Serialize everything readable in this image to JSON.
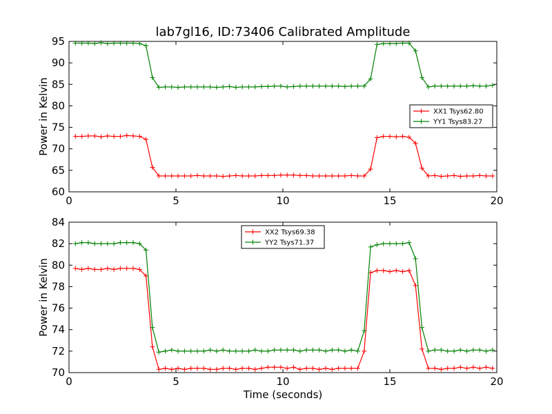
{
  "figure": {
    "title": "lab7gl16, ID:73406 Calibrated Amplitude",
    "xlabel": "Time (seconds)"
  },
  "chart_data": [
    {
      "type": "line",
      "title": "lab7gl16, ID:73406 Calibrated Amplitude",
      "xlabel": "",
      "ylabel": "Power in Kelvin",
      "xlim": [
        0,
        20
      ],
      "ylim": [
        60,
        95
      ],
      "xticks": [
        0,
        5,
        10,
        15,
        20
      ],
      "yticks": [
        60,
        65,
        70,
        75,
        80,
        85,
        90,
        95
      ],
      "grid": false,
      "legend": "center-right",
      "x": [
        0.3,
        0.6,
        0.9,
        1.2,
        1.5,
        1.8,
        2.1,
        2.4,
        2.7,
        3.0,
        3.3,
        3.6,
        3.9,
        4.2,
        4.5,
        4.8,
        5.1,
        5.4,
        5.7,
        6.0,
        6.3,
        6.6,
        6.9,
        7.2,
        7.5,
        7.8,
        8.1,
        8.4,
        8.7,
        9.0,
        9.3,
        9.6,
        9.9,
        10.2,
        10.5,
        10.8,
        11.1,
        11.4,
        11.7,
        12.0,
        12.3,
        12.6,
        12.9,
        13.2,
        13.5,
        13.8,
        14.1,
        14.4,
        14.7,
        15.0,
        15.3,
        15.6,
        15.9,
        16.2,
        16.5,
        16.8,
        17.1,
        17.4,
        17.7,
        18.0,
        18.3,
        18.6,
        18.9,
        19.2,
        19.5,
        19.8
      ],
      "series": [
        {
          "name": "XX1 Tsys62.80",
          "color": "#ff0000",
          "values": [
            72.9,
            72.9,
            73.0,
            73.0,
            72.8,
            73.0,
            72.9,
            72.9,
            73.1,
            73.0,
            72.9,
            72.2,
            65.7,
            63.7,
            63.7,
            63.7,
            63.7,
            63.7,
            63.7,
            63.8,
            63.7,
            63.7,
            63.7,
            63.6,
            63.7,
            63.8,
            63.7,
            63.7,
            63.7,
            63.8,
            63.8,
            63.8,
            63.9,
            63.9,
            63.9,
            63.8,
            63.8,
            63.7,
            63.7,
            63.7,
            63.7,
            63.7,
            63.7,
            63.8,
            63.7,
            63.7,
            65.3,
            72.6,
            72.9,
            72.9,
            72.8,
            72.9,
            72.7,
            71.3,
            65.5,
            63.7,
            63.8,
            63.6,
            63.7,
            63.8,
            63.6,
            63.7,
            63.7,
            63.8,
            63.7,
            63.7
          ]
        },
        {
          "name": "YY1 Tsys83.27",
          "color": "#008000",
          "values": [
            94.6,
            94.6,
            94.6,
            94.5,
            94.7,
            94.5,
            94.6,
            94.6,
            94.6,
            94.6,
            94.5,
            94.0,
            86.6,
            84.3,
            84.4,
            84.4,
            84.3,
            84.4,
            84.4,
            84.4,
            84.4,
            84.4,
            84.3,
            84.4,
            84.5,
            84.3,
            84.4,
            84.4,
            84.4,
            84.5,
            84.5,
            84.6,
            84.6,
            84.4,
            84.5,
            84.6,
            84.6,
            84.6,
            84.6,
            84.6,
            84.6,
            84.6,
            84.5,
            84.6,
            84.6,
            84.6,
            86.3,
            94.3,
            94.5,
            94.5,
            94.5,
            94.6,
            94.6,
            92.8,
            86.6,
            84.4,
            84.6,
            84.6,
            84.6,
            84.6,
            84.6,
            84.6,
            84.7,
            84.6,
            84.6,
            84.8
          ]
        }
      ]
    },
    {
      "type": "line",
      "title": "",
      "xlabel": "Time (seconds)",
      "ylabel": "Power in Kelvin",
      "xlim": [
        0,
        20
      ],
      "ylim": [
        70,
        84
      ],
      "xticks": [
        0,
        5,
        10,
        15,
        20
      ],
      "yticks": [
        70,
        72,
        74,
        76,
        78,
        80,
        82,
        84
      ],
      "grid": false,
      "legend": "top-center",
      "x": [
        0.3,
        0.6,
        0.9,
        1.2,
        1.5,
        1.8,
        2.1,
        2.4,
        2.7,
        3.0,
        3.3,
        3.6,
        3.9,
        4.2,
        4.5,
        4.8,
        5.1,
        5.4,
        5.7,
        6.0,
        6.3,
        6.6,
        6.9,
        7.2,
        7.5,
        7.8,
        8.1,
        8.4,
        8.7,
        9.0,
        9.3,
        9.6,
        9.9,
        10.2,
        10.5,
        10.8,
        11.1,
        11.4,
        11.7,
        12.0,
        12.3,
        12.6,
        12.9,
        13.2,
        13.5,
        13.8,
        14.1,
        14.4,
        14.7,
        15.0,
        15.3,
        15.6,
        15.9,
        16.2,
        16.5,
        16.8,
        17.1,
        17.4,
        17.7,
        18.0,
        18.3,
        18.6,
        18.9,
        19.2,
        19.5,
        19.8
      ],
      "series": [
        {
          "name": "XX2 Tsys69.38",
          "color": "#ff0000",
          "values": [
            79.7,
            79.6,
            79.7,
            79.6,
            79.6,
            79.7,
            79.6,
            79.7,
            79.7,
            79.7,
            79.6,
            79.0,
            72.4,
            70.3,
            70.4,
            70.3,
            70.4,
            70.3,
            70.4,
            70.4,
            70.4,
            70.3,
            70.3,
            70.4,
            70.4,
            70.3,
            70.4,
            70.4,
            70.3,
            70.4,
            70.5,
            70.5,
            70.5,
            70.4,
            70.5,
            70.3,
            70.4,
            70.4,
            70.3,
            70.4,
            70.3,
            70.4,
            70.4,
            70.4,
            70.4,
            72.0,
            79.3,
            79.5,
            79.5,
            79.4,
            79.5,
            79.4,
            79.5,
            78.1,
            72.2,
            70.4,
            70.4,
            70.3,
            70.4,
            70.4,
            70.5,
            70.4,
            70.5,
            70.4,
            70.5,
            70.4
          ]
        },
        {
          "name": "YY2 Tsys71.37",
          "color": "#008000",
          "values": [
            82.0,
            82.1,
            82.1,
            82.0,
            82.0,
            82.0,
            82.0,
            82.1,
            82.1,
            82.1,
            82.0,
            81.4,
            74.2,
            71.9,
            72.0,
            72.1,
            72.0,
            72.0,
            72.0,
            72.0,
            72.0,
            72.1,
            72.0,
            72.1,
            72.0,
            72.0,
            72.0,
            72.0,
            72.1,
            72.0,
            72.0,
            72.1,
            72.1,
            72.1,
            72.1,
            72.0,
            72.1,
            72.1,
            72.1,
            72.0,
            72.1,
            72.1,
            72.0,
            72.1,
            72.0,
            73.9,
            81.7,
            81.9,
            82.0,
            82.0,
            82.0,
            82.0,
            82.1,
            80.6,
            74.2,
            72.0,
            72.1,
            72.1,
            72.0,
            72.0,
            72.1,
            72.0,
            72.1,
            72.1,
            72.0,
            72.1
          ]
        }
      ]
    }
  ]
}
